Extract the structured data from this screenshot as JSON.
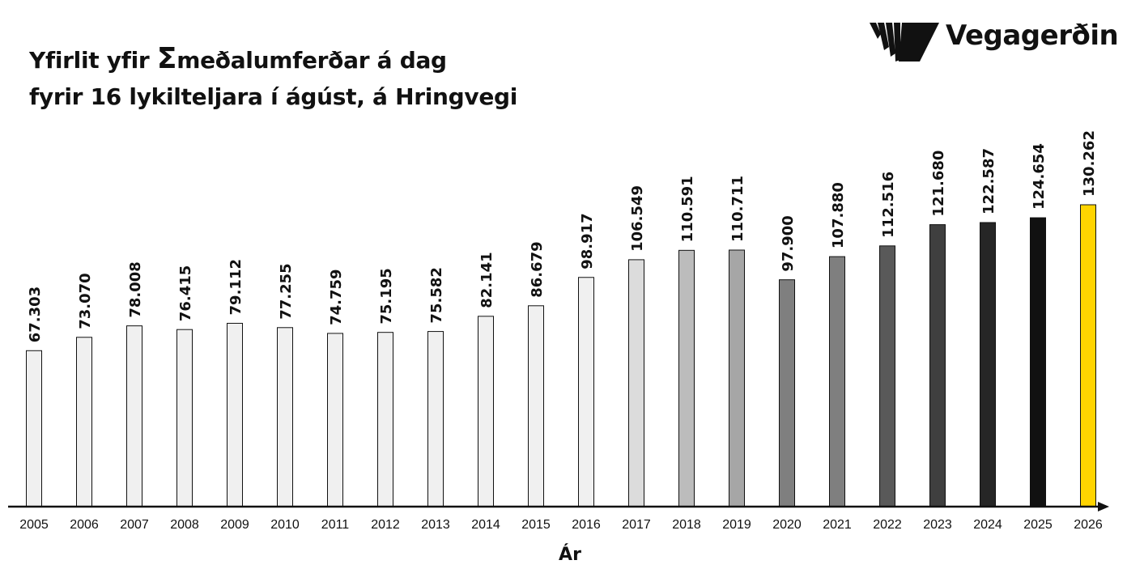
{
  "header": {
    "title_part1": "Yfirlit yfir ",
    "sigma": "Σ",
    "title_part2": "meðalumferðar á dag",
    "title_line2": "fyrir 16 lykilteljara í ágúst, á Hringvegi",
    "logo_text": "Vegagerðin"
  },
  "chart_data": {
    "type": "bar",
    "title": "Yfirlit yfir Σmeðalumferðar á dag fyrir 16 lykilteljara í ágúst, á Hringvegi",
    "xlabel": "Ár",
    "ylabel": "",
    "ylim": [
      0,
      140000
    ],
    "grid": false,
    "categories": [
      "2005",
      "2006",
      "2007",
      "2008",
      "2009",
      "2010",
      "2011",
      "2012",
      "2013",
      "2014",
      "2015",
      "2016",
      "2017",
      "2018",
      "2019",
      "2020",
      "2021",
      "2022",
      "2023",
      "2024",
      "2025",
      "2026"
    ],
    "values": [
      67303,
      73070,
      78008,
      76415,
      79112,
      77255,
      74759,
      75195,
      75582,
      82141,
      86679,
      98917,
      106549,
      110591,
      110711,
      97900,
      107880,
      112516,
      121680,
      122587,
      124654,
      130262
    ],
    "labels": [
      "67.303",
      "73.070",
      "78.008",
      "76.415",
      "79.112",
      "77.255",
      "74.759",
      "75.195",
      "75.582",
      "82.141",
      "86.679",
      "98.917",
      "106.549",
      "110.591",
      "110.711",
      "97.900",
      "107.880",
      "112.516",
      "121.680",
      "122.587",
      "124.654",
      "130.262"
    ],
    "bar_colors": [
      "#f0f0f0",
      "#f0f0f0",
      "#f0f0f0",
      "#f0f0f0",
      "#f0f0f0",
      "#f0f0f0",
      "#f0f0f0",
      "#f0f0f0",
      "#f0f0f0",
      "#f0f0f0",
      "#f0f0f0",
      "#f0f0f0",
      "#dcdcdc",
      "#bcbcbc",
      "#a6a6a6",
      "#7f7f7f",
      "#7f7f7f",
      "#595959",
      "#3f3f3f",
      "#262626",
      "#111111",
      "#ffd400"
    ],
    "accent_color": "#ffd400",
    "axis_color": "#111111"
  }
}
